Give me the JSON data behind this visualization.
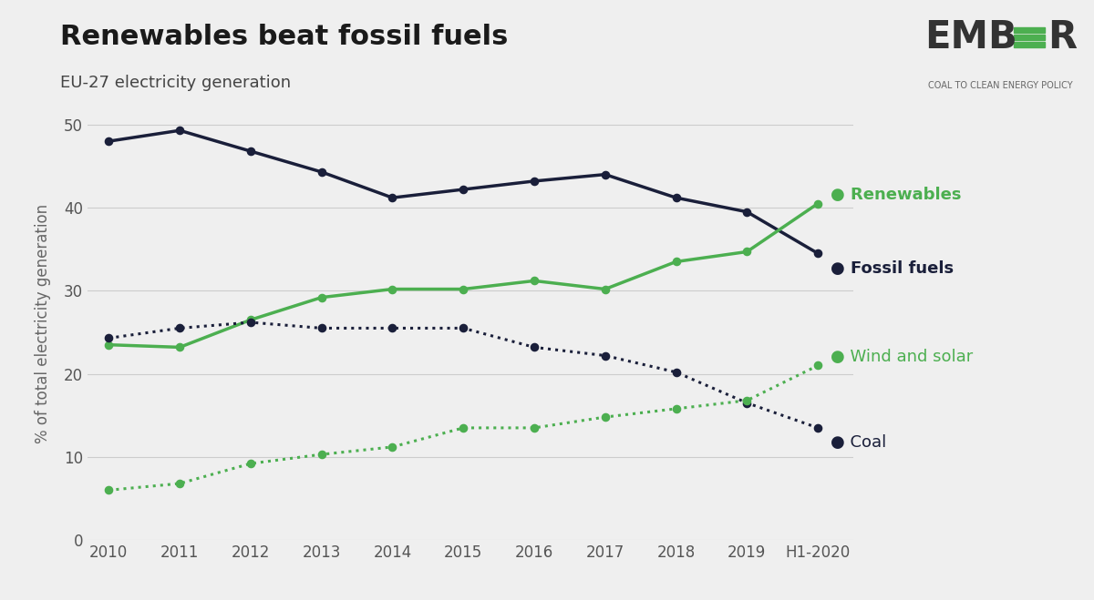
{
  "title": "Renewables beat fossil fuels",
  "subtitle": "EU-27 electricity generation",
  "ylabel": "% of total electricity generation",
  "background_color": "#efefef",
  "years": [
    "2010",
    "2011",
    "2012",
    "2013",
    "2014",
    "2015",
    "2016",
    "2017",
    "2018",
    "2019",
    "H1-2020"
  ],
  "fossil_fuels": [
    48.0,
    49.3,
    46.8,
    44.3,
    41.2,
    42.2,
    43.2,
    44.0,
    41.2,
    39.5,
    34.5
  ],
  "renewables": [
    23.5,
    23.2,
    26.5,
    29.2,
    30.2,
    30.2,
    31.2,
    30.2,
    33.5,
    34.7,
    40.5
  ],
  "coal": [
    24.3,
    25.5,
    26.2,
    25.5,
    25.5,
    25.5,
    23.2,
    22.2,
    20.2,
    16.5,
    13.5
  ],
  "wind_solar": [
    6.0,
    6.8,
    9.2,
    10.3,
    11.2,
    13.5,
    13.5,
    14.8,
    15.8,
    16.8,
    21.0
  ],
  "fossil_color": "#1a1f3a",
  "renewables_color": "#4caf50",
  "grid_color": "#cccccc",
  "yticks": [
    0,
    10,
    20,
    30,
    40,
    50
  ],
  "ember_green": "#4caf50",
  "ember_dark": "#333333"
}
